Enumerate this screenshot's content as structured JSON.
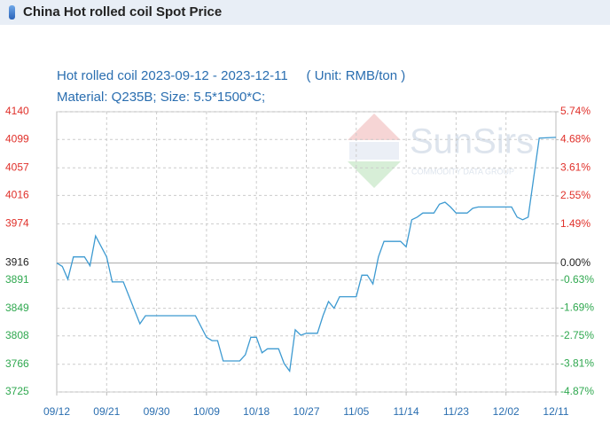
{
  "header": {
    "title": "China Hot rolled coil Spot Price"
  },
  "chart_data": {
    "type": "line",
    "title": "Hot rolled coil 2023-09-12 - 2023-12-11     ( Unit: RMB/ton )",
    "subtitle": "Material: Q235B; Size: 5.5*1500*C;",
    "watermark": "SunSirs",
    "watermark_subtitle": "COMMODITY DATA GROUP",
    "x": [
      "09/12",
      "09/13",
      "09/14",
      "09/15",
      "09/17",
      "09/18",
      "09/19",
      "09/21",
      "09/22",
      "09/24",
      "09/27",
      "09/28",
      "10/07",
      "10/09",
      "10/10",
      "10/11",
      "10/12",
      "10/15",
      "10/16",
      "10/17",
      "10/18",
      "10/19",
      "10/20",
      "10/22",
      "10/23",
      "10/24",
      "10/25",
      "10/26",
      "10/27",
      "10/29",
      "10/30",
      "10/31",
      "11/01",
      "11/02",
      "11/05",
      "11/06",
      "11/07",
      "11/08",
      "11/09",
      "11/10",
      "11/13",
      "11/14",
      "11/15",
      "11/16",
      "11/17",
      "11/19",
      "11/20",
      "11/21",
      "11/22",
      "11/23",
      "11/25",
      "11/26",
      "11/27",
      "12/03",
      "12/04",
      "12/05",
      "12/06",
      "12/07",
      "12/08",
      "12/11"
    ],
    "series": [
      {
        "color": "#3d9ad1",
        "values": [
          3916,
          3911,
          3892,
          3925,
          3925,
          3912,
          3956,
          3925,
          3888,
          3888,
          3826,
          3838,
          3838,
          3806,
          3801,
          3801,
          3771,
          3771,
          3780,
          3806,
          3806,
          3783,
          3789,
          3789,
          3767,
          3756,
          3817,
          3809,
          3812,
          3812,
          3838,
          3859,
          3849,
          3866,
          3866,
          3898,
          3898,
          3885,
          3925,
          3948,
          3948,
          3940,
          3980,
          3984,
          3990,
          3990,
          4003,
          4006,
          3999,
          3990,
          3990,
          3997,
          3999,
          3999,
          3984,
          3980,
          3984,
          4043,
          4101,
          4102
        ]
      }
    ],
    "xlim": [
      "09/12",
      "12/11"
    ],
    "xticks": [
      "09/12",
      "09/21",
      "09/30",
      "10/09",
      "10/18",
      "10/27",
      "11/05",
      "11/14",
      "11/23",
      "12/02",
      "12/11"
    ],
    "ylim": [
      3725,
      4140
    ],
    "yticks": [
      4140,
      4099,
      4057,
      4016,
      3974,
      3916,
      3891,
      3849,
      3808,
      3766,
      3725
    ],
    "y2lim": [
      -4.87,
      5.74
    ],
    "y2ticks": [
      {
        "value": 5.74,
        "label": "5.74%"
      },
      {
        "value": 4.68,
        "label": "4.68%"
      },
      {
        "value": 3.61,
        "label": "3.61%"
      },
      {
        "value": 2.55,
        "label": "2.55%"
      },
      {
        "value": 1.49,
        "label": "1.49%"
      },
      {
        "value": 0,
        "label": "0.00%"
      },
      {
        "value": -0.63,
        "label": "-0.63%"
      },
      {
        "value": -1.69,
        "label": "-1.69%"
      },
      {
        "value": -2.75,
        "label": "-2.75%"
      },
      {
        "value": -3.81,
        "label": "-3.81%"
      },
      {
        "value": -4.87,
        "label": "-4.87%"
      }
    ],
    "grid": true,
    "up_color": "#e0302a",
    "down_color": "#2fa84f",
    "base_color": "#222"
  }
}
